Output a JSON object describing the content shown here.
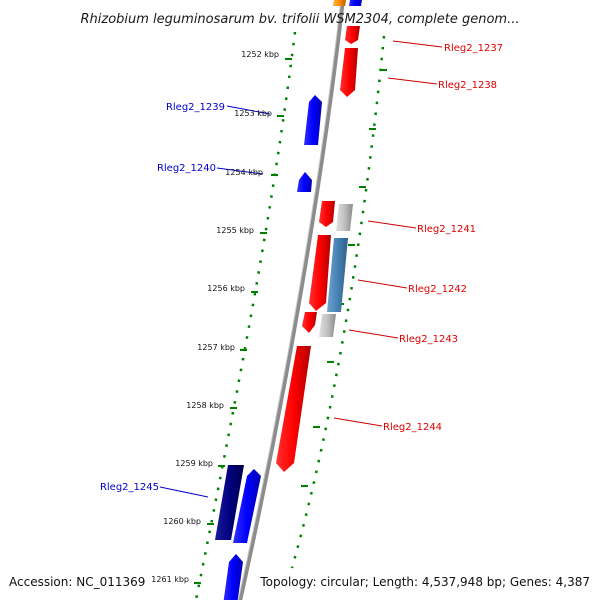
{
  "title": "Rhizobium leguminosarum bv. trifolii WSM2304, complete genom...",
  "footer": {
    "accession": "Accession: NC_011369",
    "summary": "Topology: circular; Length: 4,537,948 bp; Genes: 4,387"
  },
  "ticks": [
    "1252 kbp",
    "1253 kbp",
    "1254 kbp",
    "1255 kbp",
    "1256 kbp",
    "1257 kbp",
    "1258 kbp",
    "1259 kbp",
    "1260 kbp",
    "1261 kbp"
  ],
  "gene_labels": {
    "rleg2_1237": "Rleg2_1237",
    "rleg2_1238": "Rleg2_1238",
    "rleg2_1239": "Rleg2_1239",
    "rleg2_1240": "Rleg2_1240",
    "rleg2_1241": "Rleg2_1241",
    "rleg2_1242": "Rleg2_1242",
    "rleg2_1243": "Rleg2_1243",
    "rleg2_1244": "Rleg2_1244",
    "rleg2_1245": "Rleg2_1245"
  },
  "colors": {
    "forward_gene": "#ff0000",
    "reverse_gene": "#0000ff",
    "reverse_gene_dark": "#000080",
    "steelblue_gene": "#4682b4",
    "gray_gene": "#c0c0c0",
    "orange_gene": "#ff8c00",
    "backbone": "#8c8c8c",
    "tick_dots": "#008000",
    "label_forward": "#e00000",
    "label_reverse": "#0000cc"
  }
}
